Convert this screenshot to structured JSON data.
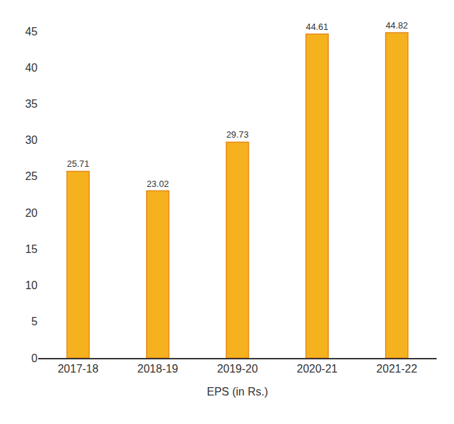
{
  "chart_data": {
    "type": "bar",
    "x_label": "EPS (in Rs.)",
    "categories": [
      "2017-18",
      "2018-19",
      "2019-20",
      "2020-21",
      "2021-22"
    ],
    "values": [
      25.71,
      23.02,
      29.73,
      44.61,
      44.82
    ],
    "color": "#f5b21e",
    "ylim": [
      0,
      45
    ],
    "yticks": [
      0,
      5,
      10,
      15,
      20,
      25,
      30,
      35,
      40,
      45
    ],
    "grid": false,
    "data_labels": true
  }
}
